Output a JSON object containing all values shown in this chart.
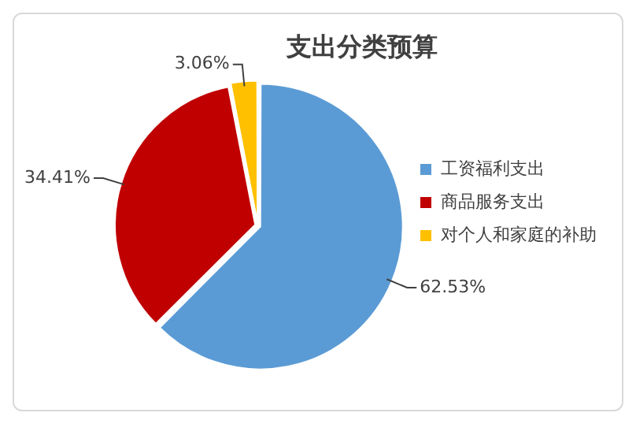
{
  "chart_data": {
    "type": "pie",
    "title": "支出分类预算",
    "categories": [
      "工资福利支出",
      "商品服务支出",
      "对个人和家庭的补助"
    ],
    "values": [
      62.53,
      34.41,
      3.06
    ],
    "colors": [
      "#5b9bd5",
      "#c00000",
      "#ffc000"
    ],
    "value_labels": [
      "62.53%",
      "34.41%",
      "3.06%"
    ],
    "legend": "right"
  }
}
